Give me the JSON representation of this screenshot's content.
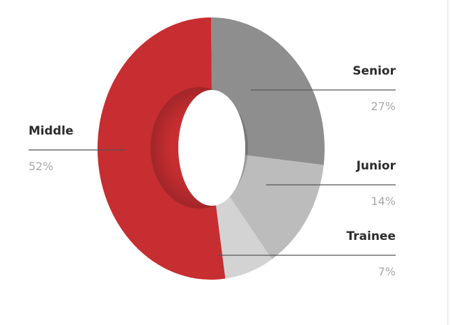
{
  "chart_data": {
    "type": "pie",
    "donut": true,
    "categories": [
      "Senior",
      "Junior",
      "Trainee",
      "Middle"
    ],
    "values": [
      27,
      14,
      7,
      52
    ],
    "value_labels": [
      "27%",
      "14%",
      "7%",
      "52%"
    ],
    "colors": [
      "#8e8e8e",
      "#bcbcbc",
      "#d3d3d3",
      "#c62e31"
    ]
  }
}
